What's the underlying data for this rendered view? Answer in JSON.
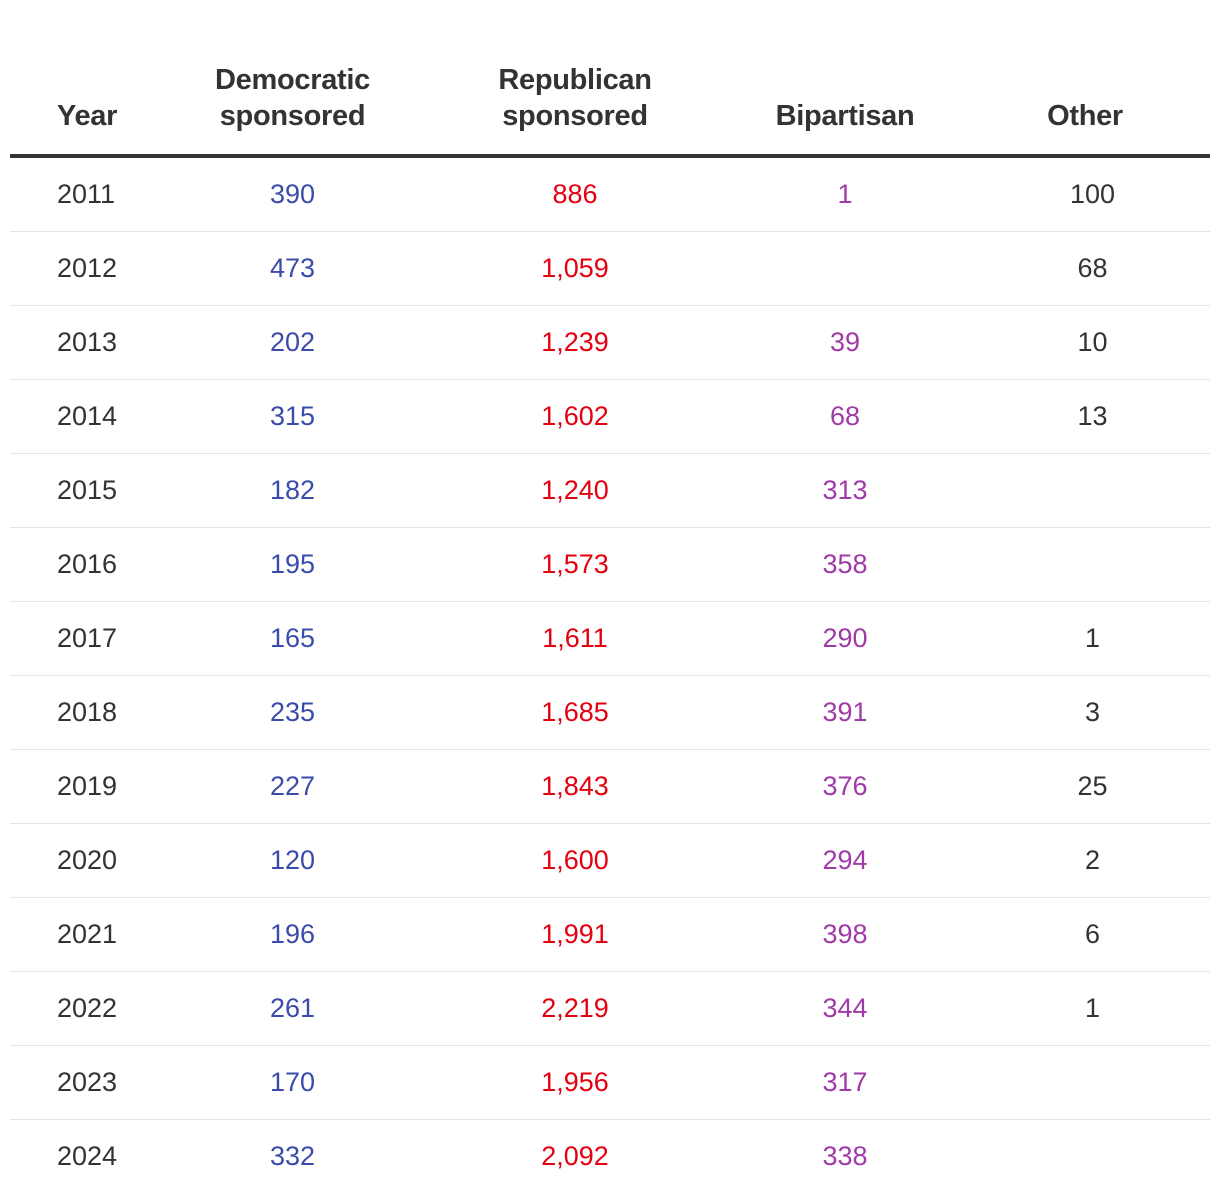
{
  "colors": {
    "democratic": "#3b4bab",
    "republican": "#e4000f",
    "bipartisan": "#a03aa8",
    "text": "#333333"
  },
  "table": {
    "headers": {
      "year": "Year",
      "democratic": [
        "Democratic",
        "sponsored"
      ],
      "republican": [
        "Republican",
        "sponsored"
      ],
      "bipartisan": "Bipartisan",
      "other": "Other"
    },
    "rows": [
      {
        "year": "2011",
        "democratic": "390",
        "republican": "886",
        "bipartisan": "1",
        "other": "100"
      },
      {
        "year": "2012",
        "democratic": "473",
        "republican": "1,059",
        "bipartisan": "",
        "other": "68"
      },
      {
        "year": "2013",
        "democratic": "202",
        "republican": "1,239",
        "bipartisan": "39",
        "other": "10"
      },
      {
        "year": "2014",
        "democratic": "315",
        "republican": "1,602",
        "bipartisan": "68",
        "other": "13"
      },
      {
        "year": "2015",
        "democratic": "182",
        "republican": "1,240",
        "bipartisan": "313",
        "other": ""
      },
      {
        "year": "2016",
        "democratic": "195",
        "republican": "1,573",
        "bipartisan": "358",
        "other": ""
      },
      {
        "year": "2017",
        "democratic": "165",
        "republican": "1,611",
        "bipartisan": "290",
        "other": "1"
      },
      {
        "year": "2018",
        "democratic": "235",
        "republican": "1,685",
        "bipartisan": "391",
        "other": "3"
      },
      {
        "year": "2019",
        "democratic": "227",
        "republican": "1,843",
        "bipartisan": "376",
        "other": "25"
      },
      {
        "year": "2020",
        "democratic": "120",
        "republican": "1,600",
        "bipartisan": "294",
        "other": "2"
      },
      {
        "year": "2021",
        "democratic": "196",
        "republican": "1,991",
        "bipartisan": "398",
        "other": "6"
      },
      {
        "year": "2022",
        "democratic": "261",
        "republican": "2,219",
        "bipartisan": "344",
        "other": "1"
      },
      {
        "year": "2023",
        "democratic": "170",
        "republican": "1,956",
        "bipartisan": "317",
        "other": ""
      },
      {
        "year": "2024",
        "democratic": "332",
        "republican": "2,092",
        "bipartisan": "338",
        "other": ""
      }
    ]
  }
}
